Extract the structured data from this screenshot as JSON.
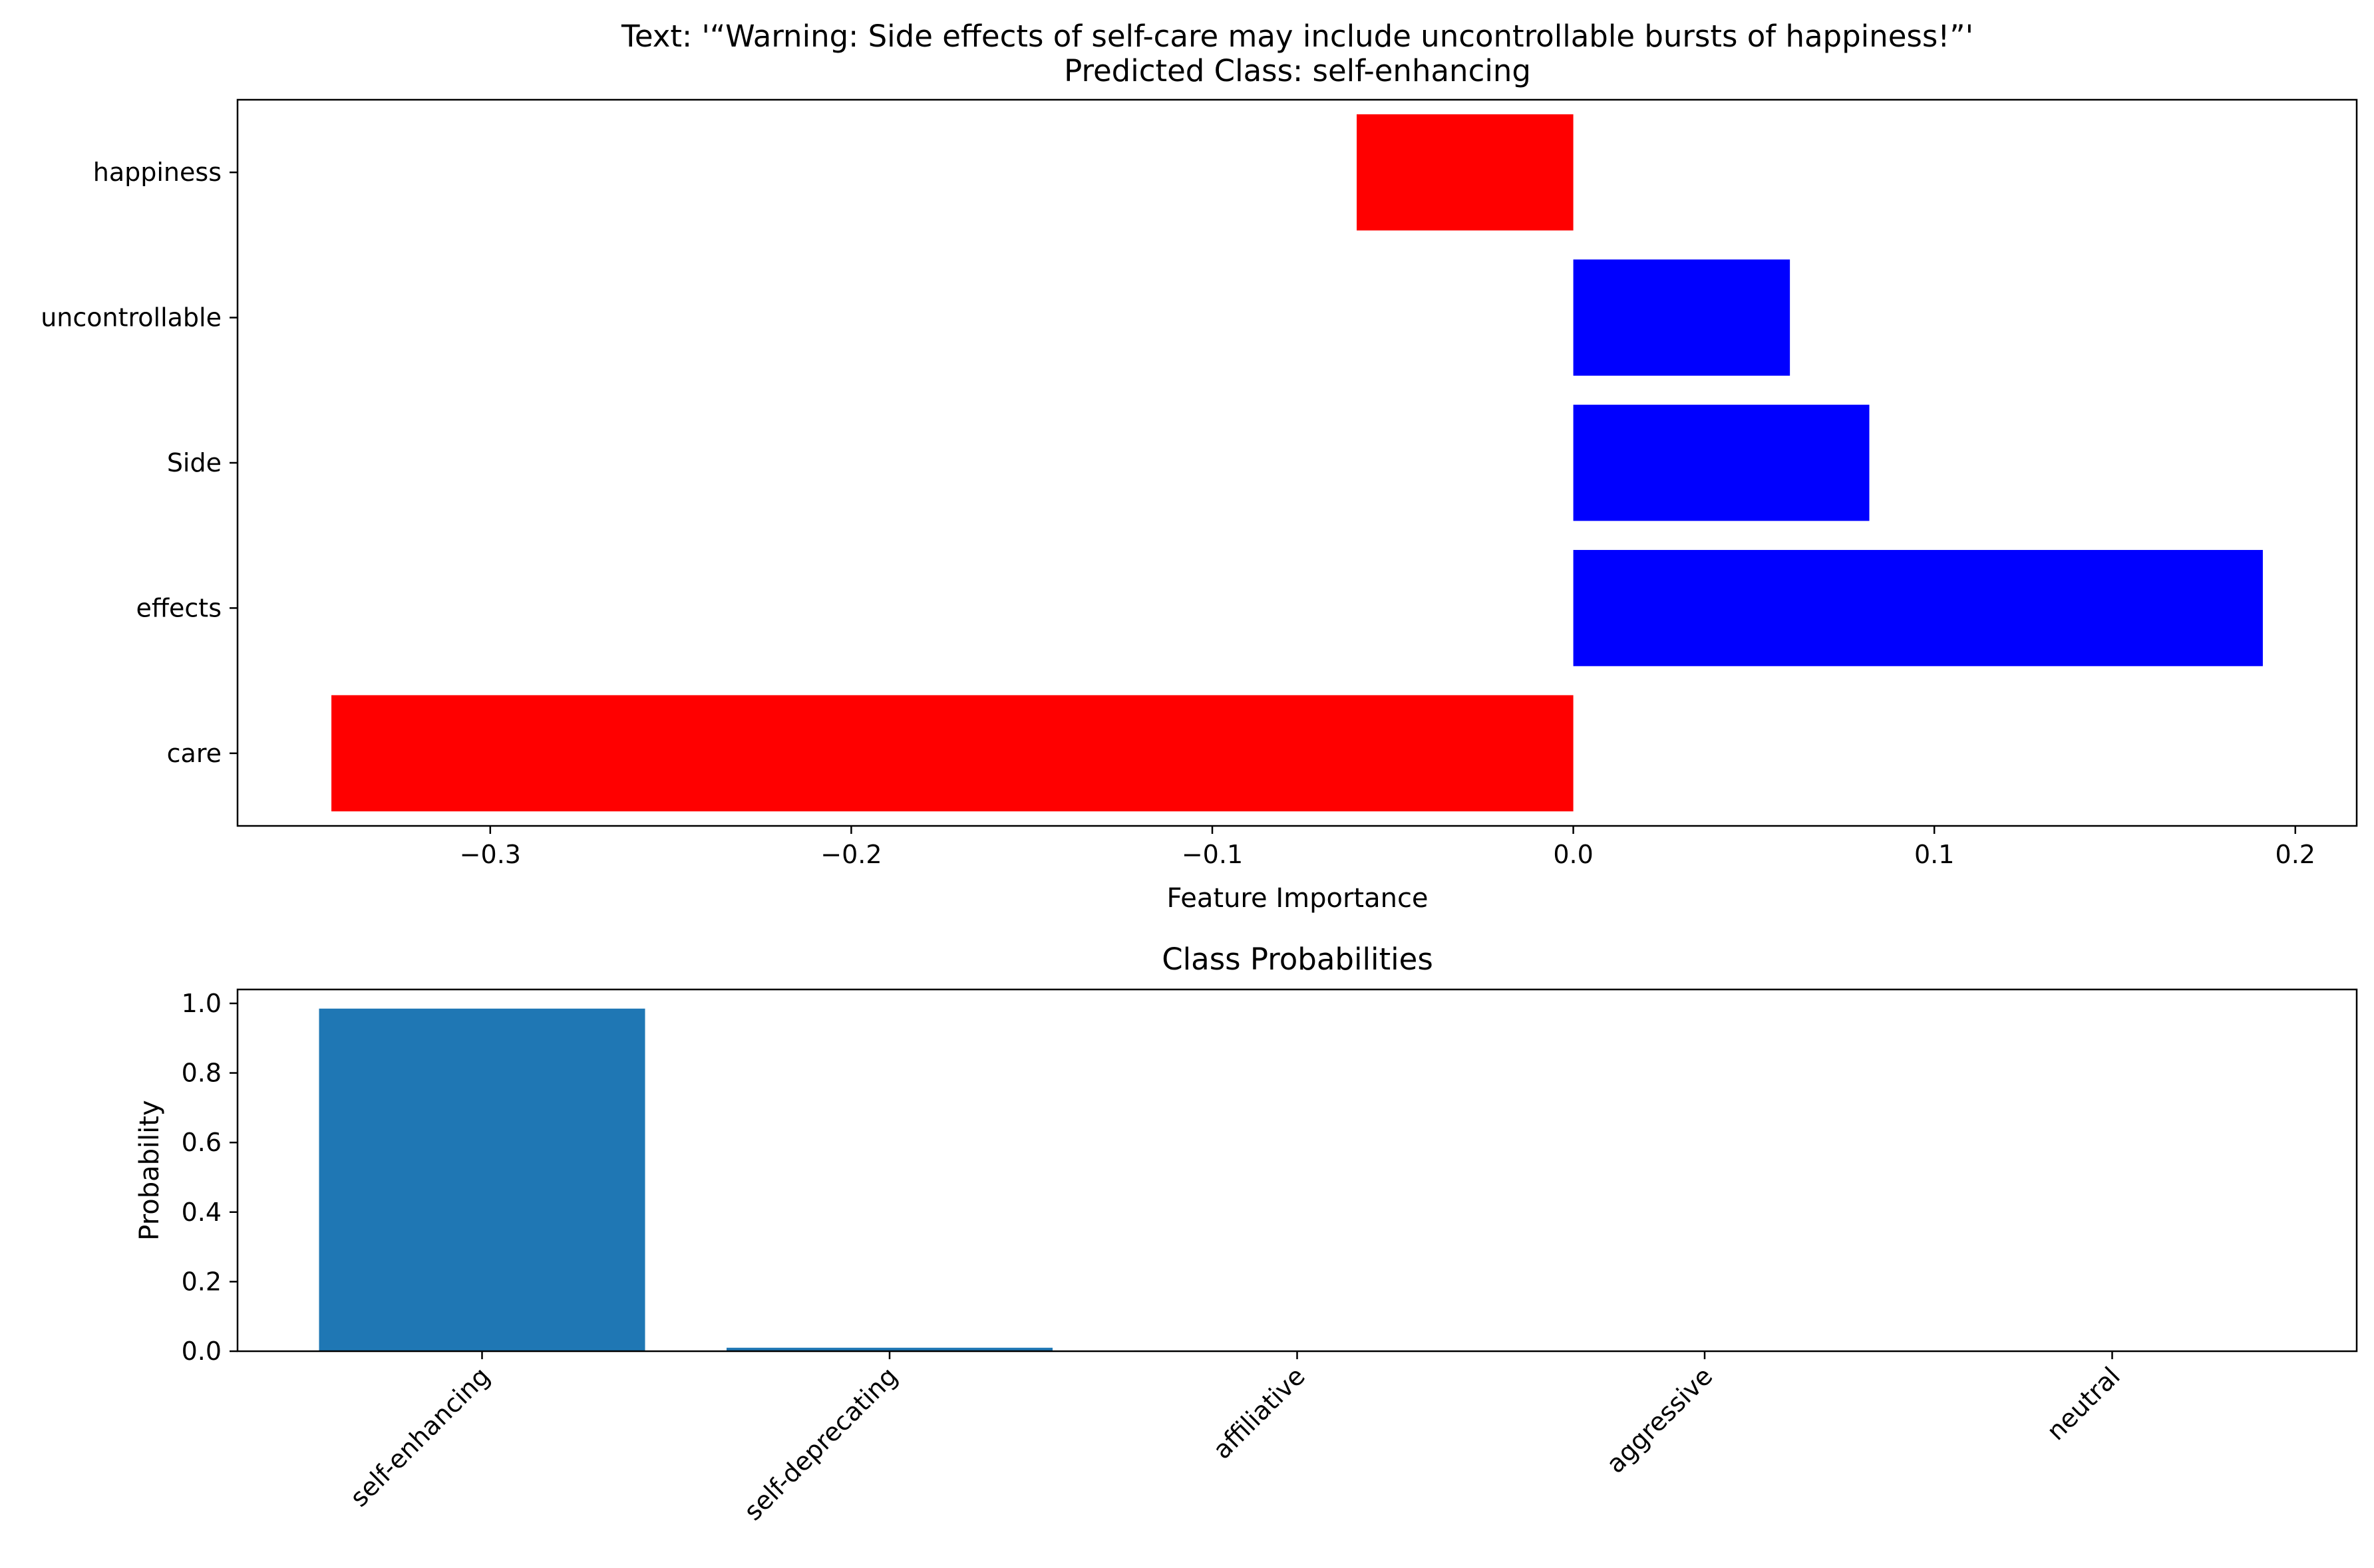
{
  "chart_data": [
    {
      "type": "bar",
      "orientation": "horizontal",
      "title_line1": "Text: '“Warning: Side effects of self-care may include uncontrollable bursts of happiness!”'",
      "title_line2": "Predicted Class: self-enhancing",
      "xlabel": "Feature Importance",
      "ylabel": "",
      "categories": [
        "happiness",
        "uncontrollable",
        "Side",
        "effects",
        "care"
      ],
      "values": [
        -0.06,
        0.06,
        0.082,
        0.191,
        -0.344
      ],
      "colors": [
        "#ff0000",
        "#0000ff",
        "#0000ff",
        "#0000ff",
        "#ff0000"
      ],
      "xlim": [
        -0.37,
        0.217
      ],
      "xticks": [
        -0.3,
        -0.2,
        -0.1,
        0.0,
        0.1,
        0.2
      ],
      "xtick_labels": [
        "−0.3",
        "−0.2",
        "−0.1",
        "0.0",
        "0.1",
        "0.2"
      ],
      "grid": false,
      "legend": "none"
    },
    {
      "type": "bar",
      "title": "Class Probabilities",
      "xlabel": "",
      "ylabel": "Probability",
      "categories": [
        "self-enhancing",
        "self-deprecating",
        "affiliative",
        "aggressive",
        "neutral"
      ],
      "values": [
        0.985,
        0.01,
        0.002,
        0.001,
        0.001
      ],
      "color": "#1f77b4",
      "ylim": [
        0,
        1.04
      ],
      "yticks": [
        0.0,
        0.2,
        0.4,
        0.6,
        0.8,
        1.0
      ],
      "ytick_labels": [
        "0.0",
        "0.2",
        "0.4",
        "0.6",
        "0.8",
        "1.0"
      ],
      "xtick_rotation": 45,
      "grid": false,
      "legend": "none"
    }
  ]
}
